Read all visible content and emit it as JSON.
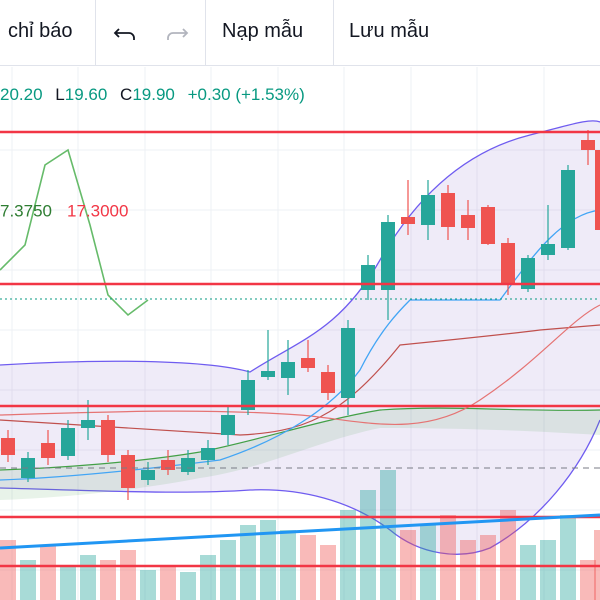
{
  "toolbar": {
    "indicators": "chỉ báo",
    "load_template": "Nạp mẫu",
    "save_template": "Lưu mẫu"
  },
  "ohlc": {
    "high": "20.20",
    "low_label": "L",
    "low": "19.60",
    "close_label": "C",
    "close": "19.90",
    "change": "+0.30 (+1.53%)"
  },
  "indicator": {
    "value_1": "7.3750",
    "value_2": "17.3000"
  }
}
